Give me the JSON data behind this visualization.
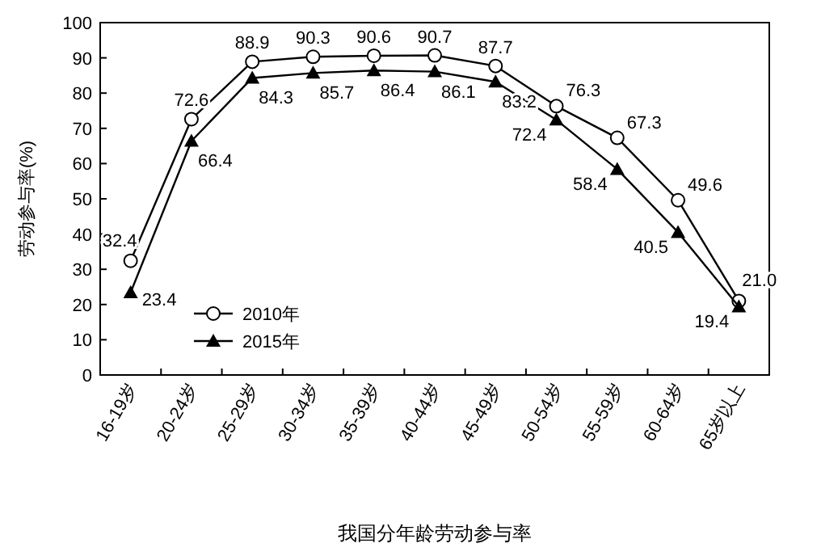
{
  "chart_data": {
    "type": "line",
    "xlabel": "我国分年龄劳动参与率",
    "ylabel": "劳动参与率(%)",
    "categories": [
      "16-19岁",
      "20-24岁",
      "25-29岁",
      "30-34岁",
      "35-39岁",
      "40-44岁",
      "45-49岁",
      "50-54岁",
      "55-59岁",
      "60-64岁",
      "65岁以上"
    ],
    "ylim": [
      0,
      100
    ],
    "yticks": [
      0,
      10,
      20,
      30,
      40,
      50,
      60,
      70,
      80,
      90,
      100
    ],
    "grid": false,
    "legend": "bottom left",
    "series": [
      {
        "name": "2010年",
        "color": "#000000",
        "marker": "circle",
        "values": [
          32.4,
          72.6,
          88.9,
          90.3,
          90.6,
          90.7,
          87.7,
          76.3,
          67.3,
          49.6,
          21.0
        ],
        "value_labels": [
          "32.4",
          "72.6",
          "88.9",
          "90.3",
          "90.6",
          "90.7",
          "87.7",
          "76.3",
          "67.3",
          "49.6",
          "21.0"
        ]
      },
      {
        "name": "2015年",
        "color": "#000000",
        "marker": "triangle",
        "values": [
          23.4,
          66.4,
          84.3,
          85.7,
          86.4,
          86.1,
          83.2,
          72.4,
          58.4,
          40.5,
          19.4
        ],
        "value_labels": [
          "23.4",
          "66.4",
          "84.3",
          "85.7",
          "86.4",
          "86.1",
          "83.2",
          "72.4",
          "58.4",
          "40.5",
          "19.4"
        ]
      }
    ]
  }
}
